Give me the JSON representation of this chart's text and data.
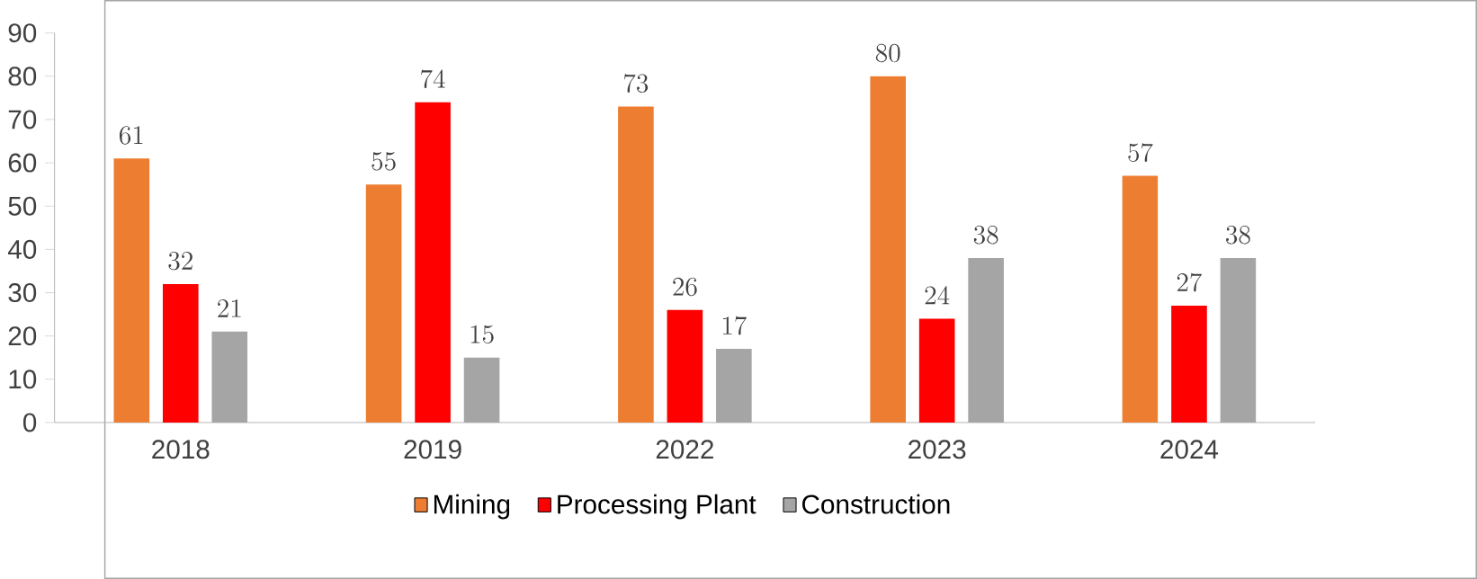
{
  "chart_data": {
    "type": "bar",
    "categories": [
      "2018",
      "2019",
      "2022",
      "2023",
      "2024"
    ],
    "series": [
      {
        "name": "Mining",
        "color": "#ed7d31",
        "values": [
          61,
          55,
          73,
          80,
          57
        ]
      },
      {
        "name": "Processing Plant",
        "color": "#ff0000",
        "values": [
          32,
          74,
          26,
          24,
          27
        ]
      },
      {
        "name": "Construction",
        "color": "#a5a5a5",
        "values": [
          21,
          15,
          17,
          38,
          38
        ]
      }
    ],
    "ylim": [
      0,
      90
    ],
    "yticks": [
      0,
      10,
      20,
      30,
      40,
      50,
      60,
      70,
      80,
      90
    ],
    "data_labels": true,
    "legend": "bottom",
    "grid": false
  }
}
